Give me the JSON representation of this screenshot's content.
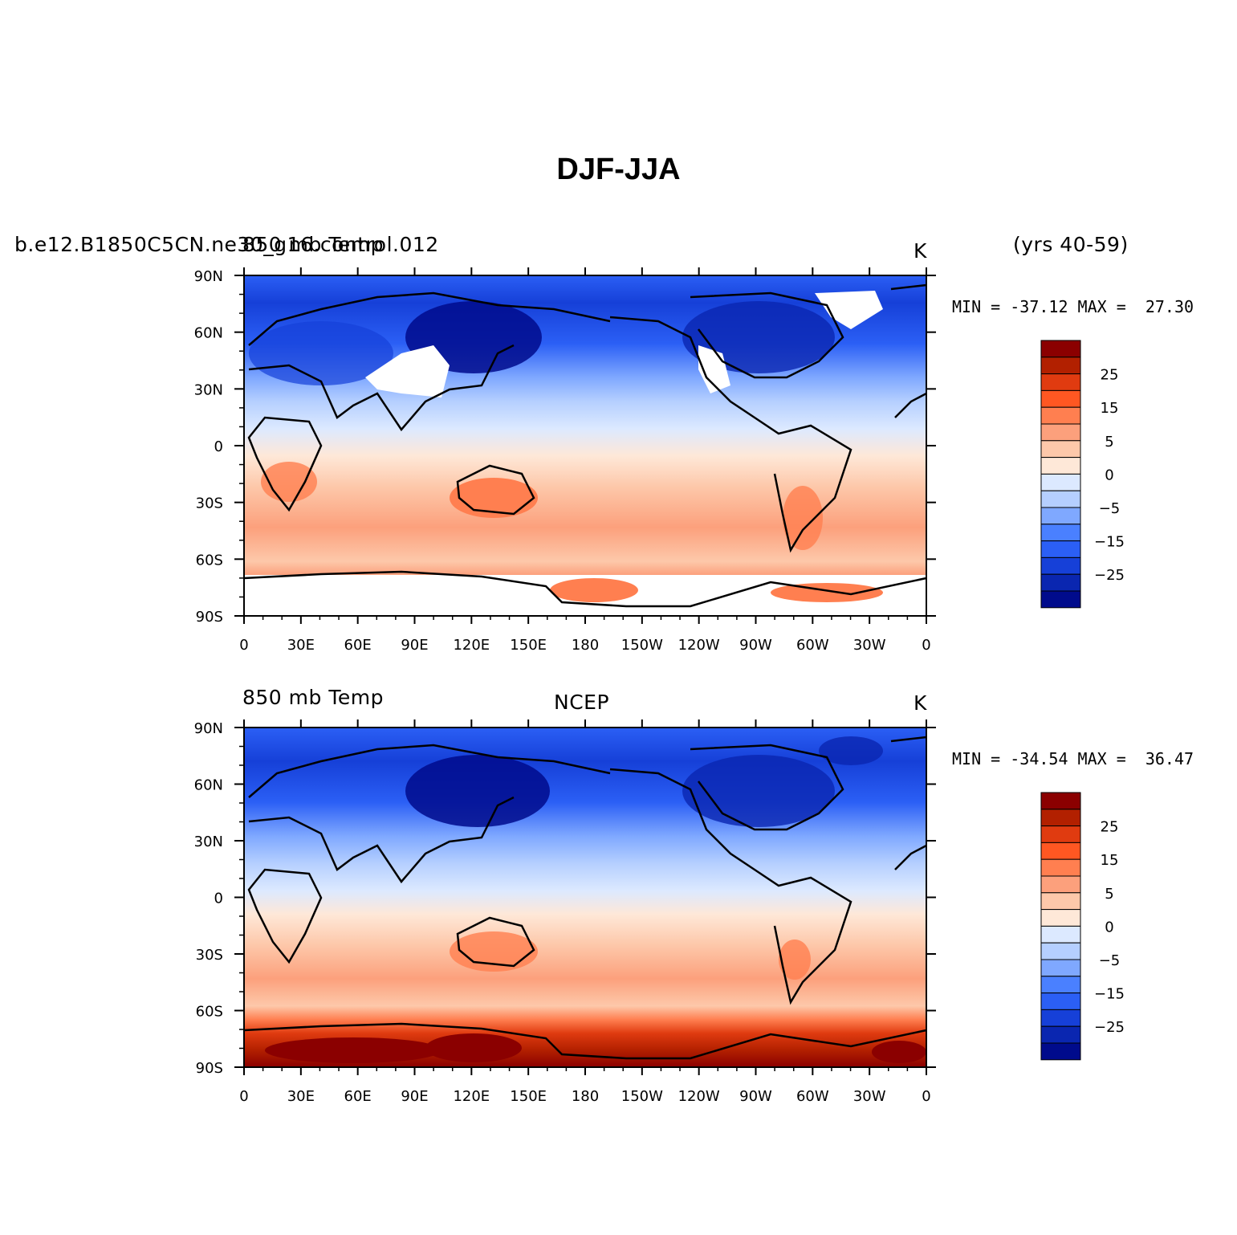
{
  "title": "DJF-JJA",
  "panels": [
    {
      "case_name": "b.e12.B1850C5CN.ne30_g16.control.012",
      "variable": "850 mb Temp",
      "units": "K",
      "years": "(yrs 40-59)",
      "min_max": "MIN = -37.12 MAX =  27.30"
    },
    {
      "variable": "850 mb Temp",
      "source": "NCEP",
      "units": "K",
      "min_max": "MIN = -34.54 MAX =  36.47"
    }
  ],
  "axes": {
    "lon_labels": [
      "0",
      "30E",
      "60E",
      "90E",
      "120E",
      "150E",
      "180",
      "150W",
      "120W",
      "90W",
      "60W",
      "30W",
      "0"
    ],
    "lat_labels": [
      "90N",
      "60N",
      "30N",
      "0",
      "30S",
      "60S",
      "90S"
    ]
  },
  "colorbar": {
    "labels": [
      "25",
      "15",
      "5",
      "0",
      "-5",
      "-15",
      "-25"
    ],
    "colors": [
      "#8b0000",
      "#b22000",
      "#e03b10",
      "#ff5722",
      "#ff7f50",
      "#fca07c",
      "#fdc8aa",
      "#fee8d8",
      "#dce9ff",
      "#b5cfff",
      "#7fa8ff",
      "#4a80ff",
      "#2b5ff5",
      "#1640d8",
      "#0a26b0",
      "#000b8c"
    ]
  }
}
